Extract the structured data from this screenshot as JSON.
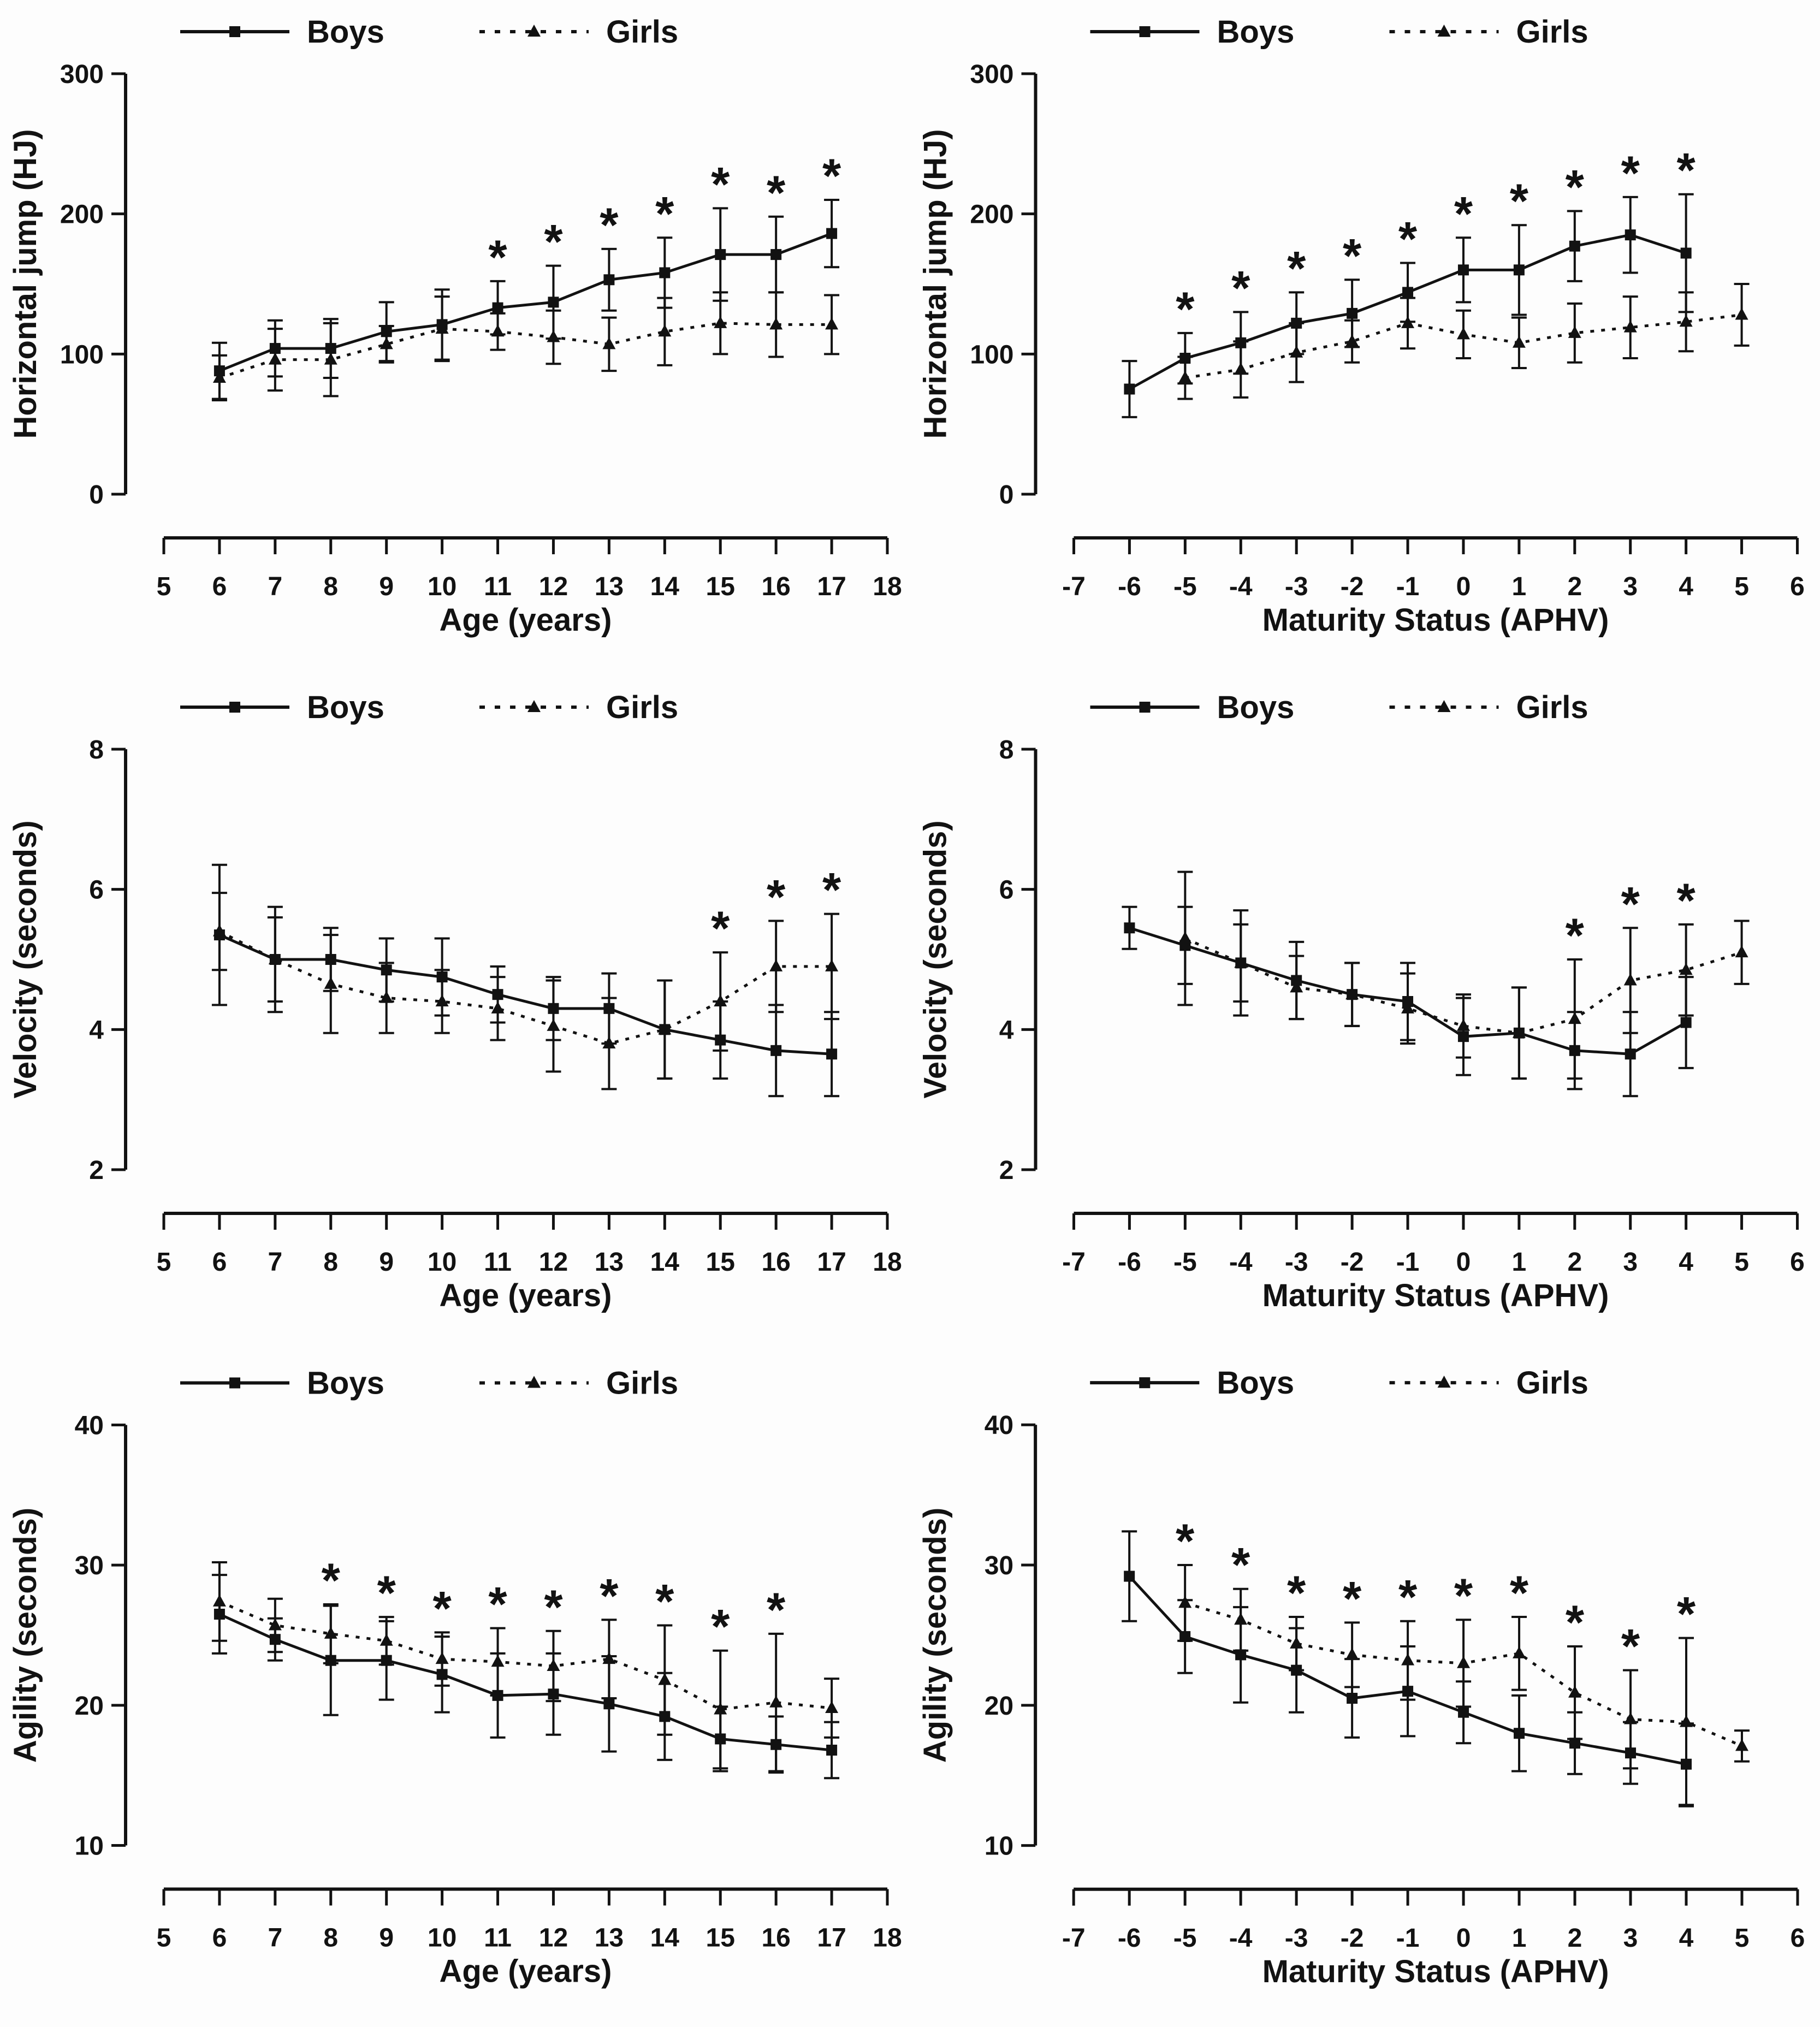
{
  "page": {
    "background": "#fdfdfd",
    "ink": "#121212"
  },
  "legend": {
    "boys_label": "Boys",
    "girls_label": "Girls"
  },
  "chart_data": [
    {
      "id": "hj-age",
      "type": "line",
      "ylabel": "Horizontal jump (HJ)",
      "xlabel": "Age (years)",
      "xlim": [
        5,
        18
      ],
      "xticks": [
        5,
        6,
        7,
        8,
        9,
        10,
        11,
        12,
        13,
        14,
        15,
        16,
        17,
        18
      ],
      "ylim": [
        0,
        300
      ],
      "yticks": [
        0,
        100,
        200,
        300
      ],
      "legend_position": "top",
      "grid": false,
      "series": [
        {
          "name": "Boys",
          "marker": "square",
          "line": "solid",
          "x": [
            6,
            7,
            8,
            9,
            10,
            11,
            12,
            13,
            14,
            15,
            16,
            17
          ],
          "y": [
            88,
            104,
            104,
            116,
            121,
            133,
            137,
            153,
            158,
            171,
            171,
            186
          ],
          "err": [
            20,
            20,
            21,
            21,
            25,
            19,
            26,
            22,
            25,
            33,
            27,
            24
          ]
        },
        {
          "name": "Girls",
          "marker": "triangle",
          "line": "dashed",
          "x": [
            6,
            7,
            8,
            9,
            10,
            11,
            12,
            13,
            14,
            15,
            16,
            17
          ],
          "y": [
            83,
            96,
            96,
            107,
            118,
            116,
            112,
            107,
            116,
            122,
            121,
            121
          ],
          "err": [
            16,
            22,
            26,
            13,
            23,
            13,
            19,
            19,
            24,
            22,
            23,
            21
          ]
        }
      ],
      "significance_x": [
        11,
        12,
        13,
        14,
        15,
        16,
        17
      ]
    },
    {
      "id": "hj-aphv",
      "type": "line",
      "ylabel": "Horizontal jump (HJ)",
      "xlabel": "Maturity Status (APHV)",
      "xlim": [
        -7,
        6
      ],
      "xticks": [
        -7,
        -6,
        -5,
        -4,
        -3,
        -2,
        -1,
        0,
        1,
        2,
        3,
        4,
        5,
        6
      ],
      "ylim": [
        0,
        300
      ],
      "yticks": [
        0,
        100,
        200,
        300
      ],
      "legend_position": "top",
      "grid": false,
      "series": [
        {
          "name": "Boys",
          "marker": "square",
          "line": "solid",
          "x": [
            -6,
            -5,
            -4,
            -3,
            -2,
            -1,
            0,
            1,
            2,
            3,
            4
          ],
          "y": [
            75,
            97,
            108,
            122,
            129,
            144,
            160,
            160,
            177,
            185,
            172
          ],
          "err": [
            20,
            18,
            22,
            22,
            24,
            21,
            23,
            32,
            25,
            27,
            42
          ]
        },
        {
          "name": "Girls",
          "marker": "triangle",
          "line": "dashed",
          "x": [
            -5,
            -4,
            -3,
            -2,
            -1,
            0,
            1,
            2,
            3,
            4,
            5
          ],
          "y": [
            83,
            89,
            101,
            109,
            122,
            114,
            108,
            115,
            119,
            123,
            128
          ],
          "err": [
            15,
            20,
            21,
            15,
            18,
            17,
            18,
            21,
            22,
            21,
            22
          ]
        }
      ],
      "significance_x": [
        -5,
        -4,
        -3,
        -2,
        -1,
        0,
        1,
        2,
        3,
        4
      ]
    },
    {
      "id": "velocity-age",
      "type": "line",
      "ylabel": "Velocity (seconds)",
      "xlabel": "Age (years)",
      "xlim": [
        5,
        18
      ],
      "xticks": [
        5,
        6,
        7,
        8,
        9,
        10,
        11,
        12,
        13,
        14,
        15,
        16,
        17,
        18
      ],
      "ylim": [
        2,
        8
      ],
      "yticks": [
        2,
        4,
        6,
        8
      ],
      "legend_position": "top",
      "grid": false,
      "series": [
        {
          "name": "Boys",
          "marker": "square",
          "line": "solid",
          "x": [
            6,
            7,
            8,
            9,
            10,
            11,
            12,
            13,
            14,
            15,
            16,
            17
          ],
          "y": [
            5.35,
            5.0,
            5.0,
            4.85,
            4.75,
            4.5,
            4.3,
            4.3,
            4.0,
            3.85,
            3.7,
            3.65
          ],
          "err": [
            1.0,
            0.6,
            0.45,
            0.45,
            0.55,
            0.4,
            0.45,
            0.5,
            0.7,
            0.55,
            0.65,
            0.6
          ]
        },
        {
          "name": "Girls",
          "marker": "triangle",
          "line": "dashed",
          "x": [
            6,
            7,
            8,
            9,
            10,
            11,
            12,
            13,
            14,
            15,
            16,
            17
          ],
          "y": [
            5.4,
            5.0,
            4.65,
            4.45,
            4.4,
            4.3,
            4.05,
            3.8,
            4.0,
            4.4,
            4.9,
            4.9
          ],
          "err": [
            0.55,
            0.75,
            0.7,
            0.5,
            0.45,
            0.45,
            0.65,
            0.65,
            0.7,
            0.7,
            0.65,
            0.75
          ]
        }
      ],
      "significance_x": [
        15,
        16,
        17
      ]
    },
    {
      "id": "velocity-aphv",
      "type": "line",
      "ylabel": "Velocity (seconds)",
      "xlabel": "Maturity Status (APHV)",
      "xlim": [
        -7,
        6
      ],
      "xticks": [
        -7,
        -6,
        -5,
        -4,
        -3,
        -2,
        -1,
        0,
        1,
        2,
        3,
        4,
        5,
        6
      ],
      "ylim": [
        2,
        8
      ],
      "yticks": [
        2,
        4,
        6,
        8
      ],
      "legend_position": "top",
      "grid": false,
      "series": [
        {
          "name": "Boys",
          "marker": "square",
          "line": "solid",
          "x": [
            -6,
            -5,
            -4,
            -3,
            -2,
            -1,
            0,
            1,
            2,
            3,
            4
          ],
          "y": [
            5.45,
            5.2,
            4.95,
            4.7,
            4.5,
            4.4,
            3.9,
            3.95,
            3.7,
            3.65,
            4.1
          ],
          "err": [
            0.3,
            0.55,
            0.55,
            0.55,
            0.45,
            0.55,
            0.55,
            0.65,
            0.55,
            0.6,
            0.65
          ]
        },
        {
          "name": "Girls",
          "marker": "triangle",
          "line": "dashed",
          "x": [
            -5,
            -4,
            -3,
            -2,
            -1,
            0,
            1,
            2,
            3,
            4,
            5
          ],
          "y": [
            5.3,
            4.95,
            4.6,
            4.5,
            4.3,
            4.05,
            3.95,
            4.15,
            4.7,
            4.85,
            5.1
          ],
          "err": [
            0.95,
            0.75,
            0.45,
            0.45,
            0.5,
            0.45,
            0.65,
            0.85,
            0.75,
            0.65,
            0.45
          ]
        }
      ],
      "significance_x": [
        2,
        3,
        4
      ]
    },
    {
      "id": "agility-age",
      "type": "line",
      "ylabel": "Agility (seconds)",
      "xlabel": "Age (years)",
      "xlim": [
        5,
        18
      ],
      "xticks": [
        5,
        6,
        7,
        8,
        9,
        10,
        11,
        12,
        13,
        14,
        15,
        16,
        17,
        18
      ],
      "ylim": [
        10,
        40
      ],
      "yticks": [
        10,
        20,
        30,
        40
      ],
      "legend_position": "top",
      "grid": false,
      "series": [
        {
          "name": "Boys",
          "marker": "square",
          "line": "solid",
          "x": [
            6,
            7,
            8,
            9,
            10,
            11,
            12,
            13,
            14,
            15,
            16,
            17
          ],
          "y": [
            26.5,
            24.7,
            23.2,
            23.2,
            22.2,
            20.7,
            20.8,
            20.1,
            19.2,
            17.6,
            17.2,
            16.8
          ],
          "err": [
            2.8,
            1.5,
            3.9,
            2.8,
            2.7,
            3.0,
            2.9,
            3.4,
            3.1,
            2.3,
            2.0,
            2.0
          ]
        },
        {
          "name": "Girls",
          "marker": "triangle",
          "line": "dashed",
          "x": [
            6,
            7,
            8,
            9,
            10,
            11,
            12,
            13,
            14,
            15,
            16,
            17
          ],
          "y": [
            27.4,
            25.7,
            25.1,
            24.6,
            23.3,
            23.1,
            22.8,
            23.3,
            21.8,
            19.7,
            20.2,
            19.8
          ],
          "err": [
            2.8,
            1.9,
            2.1,
            1.7,
            1.9,
            2.4,
            2.5,
            2.8,
            3.9,
            4.2,
            4.9,
            2.1
          ]
        }
      ],
      "significance_x": [
        8,
        9,
        10,
        11,
        12,
        13,
        14,
        15,
        16
      ]
    },
    {
      "id": "agility-aphv",
      "type": "line",
      "ylabel": "Agility (seconds)",
      "xlabel": "Maturity Status (APHV)",
      "xlim": [
        -7,
        6
      ],
      "xticks": [
        -7,
        -6,
        -5,
        -4,
        -3,
        -2,
        -1,
        0,
        1,
        2,
        3,
        4,
        5,
        6
      ],
      "ylim": [
        10,
        40
      ],
      "yticks": [
        10,
        20,
        30,
        40
      ],
      "legend_position": "top",
      "grid": false,
      "series": [
        {
          "name": "Boys",
          "marker": "square",
          "line": "solid",
          "x": [
            -6,
            -5,
            -4,
            -3,
            -2,
            -1,
            0,
            1,
            2,
            3,
            4
          ],
          "y": [
            29.2,
            24.9,
            23.6,
            22.5,
            20.5,
            21.0,
            19.5,
            18.0,
            17.3,
            16.6,
            15.8
          ],
          "err": [
            3.2,
            2.6,
            3.4,
            3.0,
            2.8,
            3.2,
            2.2,
            2.7,
            2.2,
            2.2,
            2.9
          ]
        },
        {
          "name": "Girls",
          "marker": "triangle",
          "line": "dashed",
          "x": [
            -5,
            -4,
            -3,
            -2,
            -1,
            0,
            1,
            2,
            3,
            4,
            5
          ],
          "y": [
            27.3,
            26.1,
            24.4,
            23.6,
            23.2,
            23.0,
            23.7,
            20.9,
            19.0,
            18.8,
            17.1
          ],
          "err": [
            2.7,
            2.2,
            1.9,
            2.3,
            2.8,
            3.1,
            2.6,
            3.3,
            3.5,
            6.0,
            1.1
          ]
        }
      ],
      "significance_x": [
        -5,
        -4,
        -3,
        -2,
        -1,
        0,
        1,
        2,
        3,
        4
      ]
    }
  ]
}
